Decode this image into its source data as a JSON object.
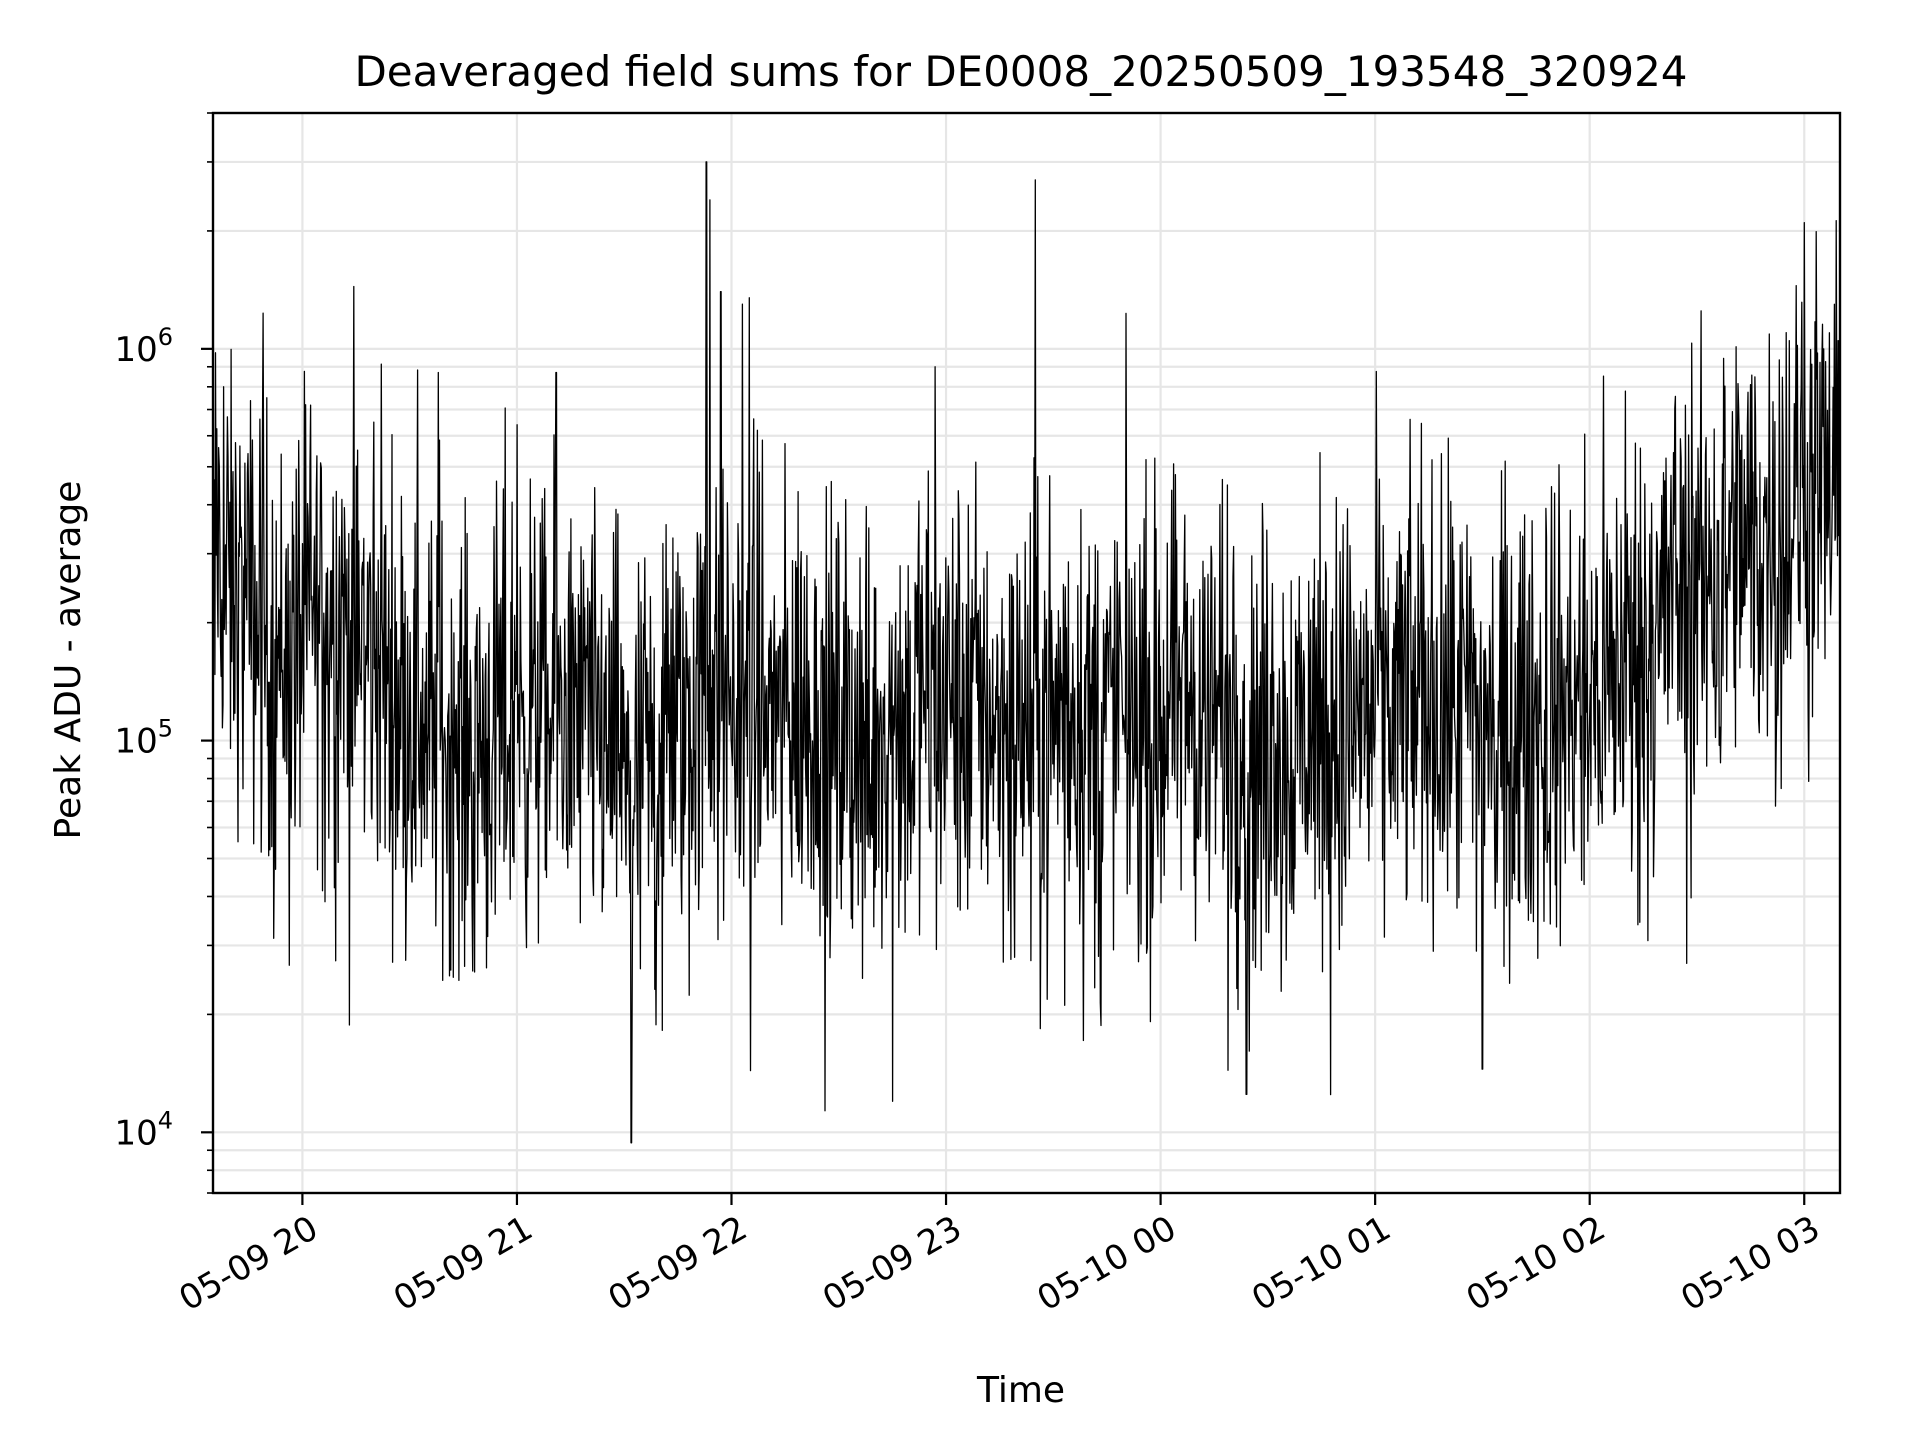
{
  "chart_data": {
    "type": "line",
    "title": "Deaveraged field sums for DE0008_20250509_193548_320924",
    "xlabel": "Time",
    "ylabel": "Peak ADU - average",
    "yscale": "log",
    "ylim": [
      7000,
      4000000
    ],
    "xlim": [
      "2025-05-09 19:35",
      "2025-05-10 03:10"
    ],
    "grid": true,
    "line_color": "#000000",
    "x_ticks": [
      {
        "x": "2025-05-09 20:00",
        "label": "05-09 20"
      },
      {
        "x": "2025-05-09 21:00",
        "label": "05-09 21"
      },
      {
        "x": "2025-05-09 22:00",
        "label": "05-09 22"
      },
      {
        "x": "2025-05-09 23:00",
        "label": "05-09 23"
      },
      {
        "x": "2025-05-10 00:00",
        "label": "05-10 00"
      },
      {
        "x": "2025-05-10 01:00",
        "label": "05-10 01"
      },
      {
        "x": "2025-05-10 02:00",
        "label": "05-10 02"
      },
      {
        "x": "2025-05-10 03:00",
        "label": "05-10 03"
      }
    ],
    "y_ticks": [
      {
        "y": 10000,
        "base": "10",
        "exp": "4"
      },
      {
        "y": 100000,
        "base": "10",
        "exp": "5"
      },
      {
        "y": 1000000,
        "base": "10",
        "exp": "6"
      }
    ],
    "series": [
      {
        "points": [
          [
            "2025-05-09 19:35",
            280000
          ],
          [
            "2025-05-09 19:45",
            210000
          ],
          [
            "2025-05-09 19:55",
            160000
          ],
          [
            "2025-05-09 20:05",
            220000
          ],
          [
            "2025-05-09 20:15",
            190000
          ],
          [
            "2025-05-09 20:25",
            140000
          ],
          [
            "2025-05-09 20:35",
            110000
          ],
          [
            "2025-05-09 20:45",
            95000
          ],
          [
            "2025-05-09 20:55",
            105000
          ],
          [
            "2025-05-09 21:05",
            120000
          ],
          [
            "2025-05-09 21:15",
            115000
          ],
          [
            "2025-05-09 21:25",
            100000
          ],
          [
            "2025-05-09 21:35",
            80000
          ],
          [
            "2025-05-09 21:45",
            110000
          ],
          [
            "2025-05-09 21:55",
            130000
          ],
          [
            "2025-05-09 22:05",
            120000
          ],
          [
            "2025-05-09 22:15",
            115000
          ],
          [
            "2025-05-09 22:25",
            110000
          ],
          [
            "2025-05-09 22:35",
            105000
          ],
          [
            "2025-05-09 22:45",
            120000
          ],
          [
            "2025-05-09 22:55",
            125000
          ],
          [
            "2025-05-09 23:05",
            130000
          ],
          [
            "2025-05-09 23:15",
            120000
          ],
          [
            "2025-05-09 23:25",
            115000
          ],
          [
            "2025-05-09 23:35",
            110000
          ],
          [
            "2025-05-09 23:45",
            120000
          ],
          [
            "2025-05-09 23:55",
            115000
          ],
          [
            "2025-05-10 00:05",
            125000
          ],
          [
            "2025-05-10 00:15",
            115000
          ],
          [
            "2025-05-10 00:25",
            105000
          ],
          [
            "2025-05-10 00:35",
            100000
          ],
          [
            "2025-05-10 00:45",
            110000
          ],
          [
            "2025-05-10 00:55",
            115000
          ],
          [
            "2025-05-10 01:05",
            125000
          ],
          [
            "2025-05-10 01:15",
            130000
          ],
          [
            "2025-05-10 01:25",
            120000
          ],
          [
            "2025-05-10 01:35",
            110000
          ],
          [
            "2025-05-10 01:45",
            105000
          ],
          [
            "2025-05-10 01:55",
            120000
          ],
          [
            "2025-05-10 02:05",
            140000
          ],
          [
            "2025-05-10 02:15",
            180000
          ],
          [
            "2025-05-10 02:25",
            250000
          ],
          [
            "2025-05-10 02:35",
            280000
          ],
          [
            "2025-05-10 02:45",
            310000
          ],
          [
            "2025-05-10 02:55",
            360000
          ],
          [
            "2025-05-10 03:05",
            450000
          ],
          [
            "2025-05-10 03:10",
            420000
          ]
        ],
        "spikes": [
          [
            "2025-05-09 19:38",
            800000
          ],
          [
            "2025-05-09 19:50",
            750000
          ],
          [
            "2025-05-09 20:20",
            650000
          ],
          [
            "2025-05-09 20:38",
            870000
          ],
          [
            "2025-05-09 21:00",
            640000
          ],
          [
            "2025-05-09 21:11",
            870000
          ],
          [
            "2025-05-09 21:32",
            9400
          ],
          [
            "2025-05-09 21:53",
            3000000
          ],
          [
            "2025-05-09 21:54",
            2400000
          ],
          [
            "2025-05-09 21:57",
            1400000
          ],
          [
            "2025-05-09 22:03",
            1300000
          ],
          [
            "2025-05-09 22:05",
            1350000
          ],
          [
            "2025-05-09 22:45",
            12000
          ],
          [
            "2025-05-09 22:57",
            900000
          ],
          [
            "2025-05-09 23:25",
            2700000
          ],
          [
            "2025-05-10 00:24",
            12500
          ],
          [
            "2025-05-10 01:30",
            14500
          ],
          [
            "2025-05-10 02:10",
            780000
          ],
          [
            "2025-05-10 02:55",
            1100000
          ],
          [
            "2025-05-10 03:00",
            2100000
          ]
        ]
      }
    ]
  }
}
